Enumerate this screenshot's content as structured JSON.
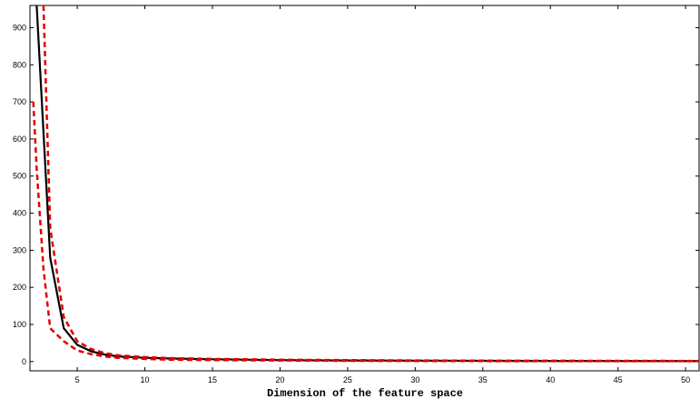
{
  "chart_data": {
    "type": "line",
    "title": "",
    "xlabel": "Dimension of the feature space",
    "ylabel": "",
    "xlim": [
      1.5,
      51
    ],
    "ylim": [
      -25,
      960
    ],
    "xticks": [
      5,
      10,
      15,
      20,
      25,
      30,
      35,
      40,
      45,
      50
    ],
    "yticks": [
      0,
      100,
      200,
      300,
      400,
      500,
      600,
      700,
      800,
      900
    ],
    "grid": false,
    "legend": "none",
    "series": [
      {
        "style": "solid",
        "color": "#000000",
        "x": [
          2,
          3,
          4,
          5,
          6,
          7,
          8,
          10,
          12,
          15,
          20,
          25,
          30,
          35,
          40,
          45,
          51
        ],
        "y": [
          960,
          280,
          90,
          45,
          28,
          19,
          14,
          10,
          8,
          6,
          4,
          3,
          2.5,
          2,
          1.8,
          1.5,
          1.3
        ]
      },
      {
        "style": "dashed",
        "color": "#e00000",
        "x": [
          2.5,
          3,
          4,
          5,
          6,
          7,
          8,
          10,
          12,
          15,
          20,
          25,
          30,
          35,
          40,
          45,
          51
        ],
        "y": [
          960,
          360,
          120,
          55,
          34,
          23,
          17,
          12,
          9,
          7,
          5,
          4,
          3,
          2.5,
          2.2,
          2,
          1.8
        ]
      },
      {
        "style": "dashed",
        "color": "#e00000",
        "x": [
          1.75,
          2,
          2.5,
          3,
          4,
          5,
          6,
          7,
          8,
          10,
          12,
          15,
          20,
          25,
          30,
          35,
          40,
          45,
          51
        ],
        "y": [
          700,
          520,
          250,
          90,
          55,
          30,
          20,
          14,
          10,
          7,
          5,
          4,
          3,
          2,
          1.5,
          1.2,
          1,
          1,
          1
        ]
      }
    ]
  }
}
